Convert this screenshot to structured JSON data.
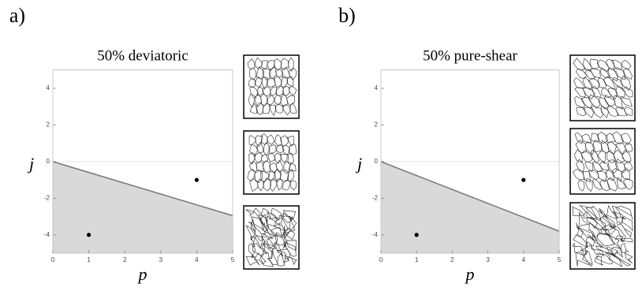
{
  "chart_data": [
    {
      "type": "scatter",
      "label": "a)",
      "title": "50% deviatoric",
      "xlabel": "p",
      "ylabel": "j",
      "xlim": [
        0,
        5
      ],
      "ylim": [
        -5,
        5
      ],
      "xticks": [
        0,
        1,
        2,
        3,
        4,
        5
      ],
      "yticks": [
        -4,
        -2,
        0,
        2,
        4
      ],
      "boundary": {
        "x": [
          0,
          5
        ],
        "y": [
          0,
          -2.95
        ],
        "color": "#777777",
        "fill": "#d9d9d9"
      },
      "points": {
        "x": [
          1,
          4
        ],
        "y": [
          -4,
          -1
        ],
        "color": "#000000"
      }
    },
    {
      "type": "scatter",
      "label": "b)",
      "title": "50% pure-shear",
      "xlabel": "p",
      "ylabel": "j",
      "xlim": [
        0,
        5
      ],
      "ylim": [
        -5,
        5
      ],
      "xticks": [
        0,
        1,
        2,
        3,
        4,
        5
      ],
      "yticks": [
        -4,
        -2,
        0,
        2,
        4
      ],
      "boundary": {
        "x": [
          0,
          5
        ],
        "y": [
          0,
          -3.8
        ],
        "color": "#777777",
        "fill": "#d9d9d9"
      },
      "points": {
        "x": [
          1,
          4
        ],
        "y": [
          -4,
          -1
        ],
        "color": "#000000"
      }
    }
  ]
}
